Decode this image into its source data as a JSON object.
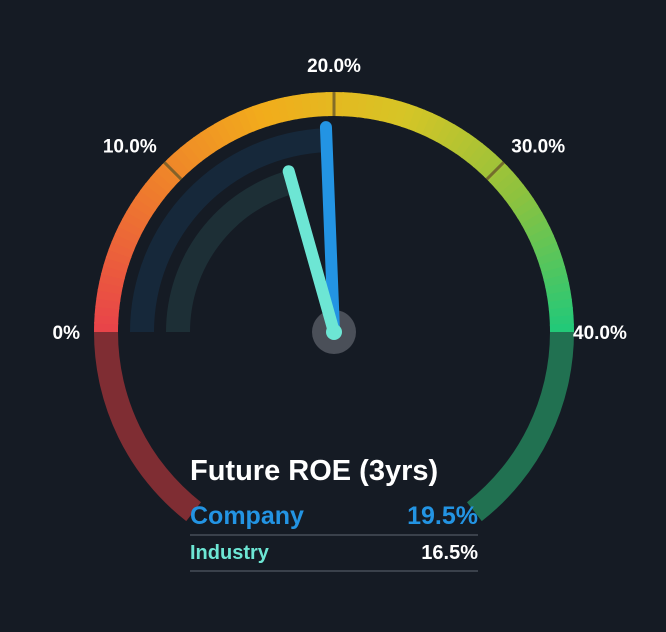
{
  "chart_data": {
    "type": "gauge",
    "title": "Future ROE (3yrs)",
    "min": 0,
    "max": 40,
    "ticks": [
      {
        "value": 0,
        "label": "0%"
      },
      {
        "value": 10,
        "label": "10.0%"
      },
      {
        "value": 20,
        "label": "20.0%"
      },
      {
        "value": 30,
        "label": "30.0%"
      },
      {
        "value": 40,
        "label": "40.0%"
      }
    ],
    "series": [
      {
        "name": "Company",
        "value": 19.5,
        "display": "19.5%",
        "color": "#2394e3"
      },
      {
        "name": "Industry",
        "value": 16.5,
        "display": "16.5%",
        "color": "#6de6d4"
      }
    ],
    "colors": {
      "background": "#151b24",
      "scale": [
        "#e8424a",
        "#ee7a2e",
        "#f2ac1b",
        "#d6c526",
        "#8cc23f",
        "#20c97a"
      ],
      "negative_zone": "#7f2d33",
      "overflow_zone": "#217151"
    }
  }
}
